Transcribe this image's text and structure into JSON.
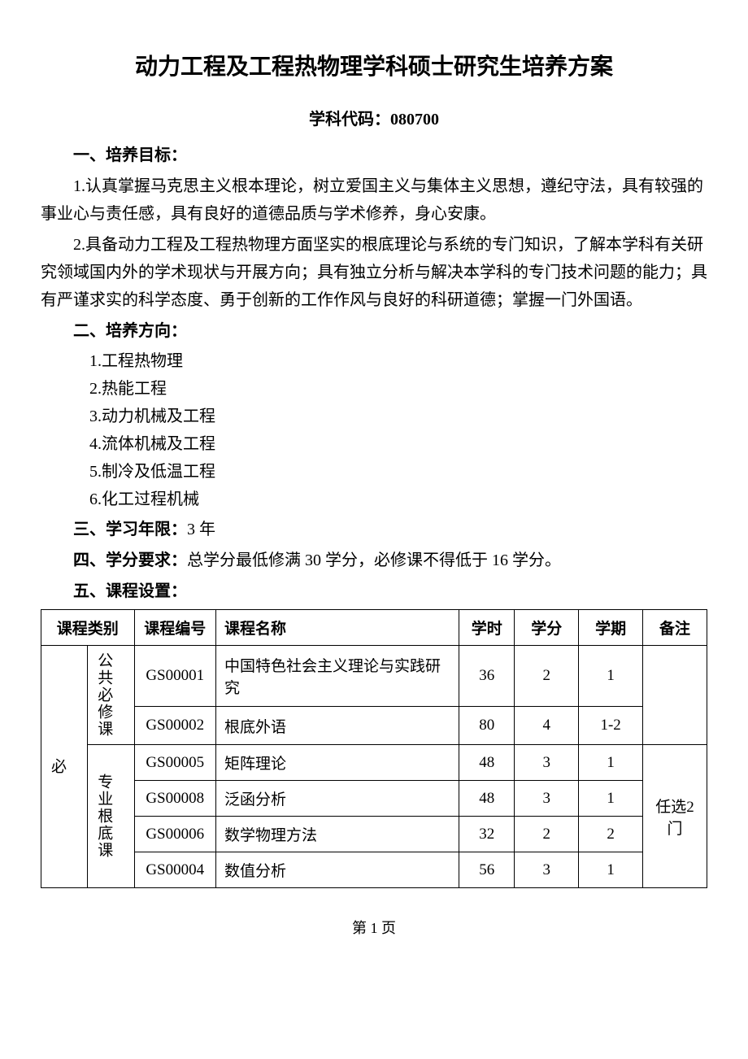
{
  "title": "动力工程及工程热物理学科硕士研究生培养方案",
  "subtitle": "学科代码：080700",
  "section1": {
    "heading": "一、培养目标：",
    "para1": "1.认真掌握马克思主义根本理论，树立爱国主义与集体主义思想，遵纪守法，具有较强的事业心与责任感，具有良好的道德品质与学术修养，身心安康。",
    "para2": "2.具备动力工程及工程热物理方面坚实的根底理论与系统的专门知识，了解本学科有关研究领域国内外的学术现状与开展方向；具有独立分析与解决本学科的专门技术问题的能力；具有严谨求实的科学态度、勇于创新的工作作风与良好的科研道德；掌握一门外国语。"
  },
  "section2": {
    "heading": "二、培养方向：",
    "items": [
      "1.工程热物理",
      "2.热能工程",
      "3.动力机械及工程",
      "4.流体机械及工程",
      "5.制冷及低温工程",
      "6.化工过程机械"
    ]
  },
  "section3": {
    "bold": "三、学习年限：",
    "rest": "3 年"
  },
  "section4": {
    "bold": "四、学分要求：",
    "rest": "总学分最低修满 30 学分，必修课不得低于 16 学分。"
  },
  "section5": {
    "heading": "五、课程设置："
  },
  "table": {
    "headers": {
      "category": "课程类别",
      "code": "课程编号",
      "name": "课程名称",
      "hours": "学时",
      "credit": "学分",
      "semester": "学期",
      "note": "备注"
    },
    "cat_main": "必",
    "cat_sub1": "公共必修课",
    "cat_sub2": "专业根底课",
    "rows": [
      {
        "code": "GS00001",
        "name": "中国特色社会主义理论与实践研究",
        "hours": "36",
        "credit": "2",
        "semester": "1"
      },
      {
        "code": "GS00002",
        "name": "根底外语",
        "hours": "80",
        "credit": "4",
        "semester": "1-2"
      },
      {
        "code": "GS00005",
        "name": "矩阵理论",
        "hours": "48",
        "credit": "3",
        "semester": "1"
      },
      {
        "code": "GS00008",
        "name": "泛函分析",
        "hours": "48",
        "credit": "3",
        "semester": "1"
      },
      {
        "code": "GS00006",
        "name": "数学物理方法",
        "hours": "32",
        "credit": "2",
        "semester": "2"
      },
      {
        "code": "GS00004",
        "name": "数值分析",
        "hours": "56",
        "credit": "3",
        "semester": "1"
      }
    ],
    "note_text": "任选2 门"
  },
  "page_number": "第 1 页"
}
